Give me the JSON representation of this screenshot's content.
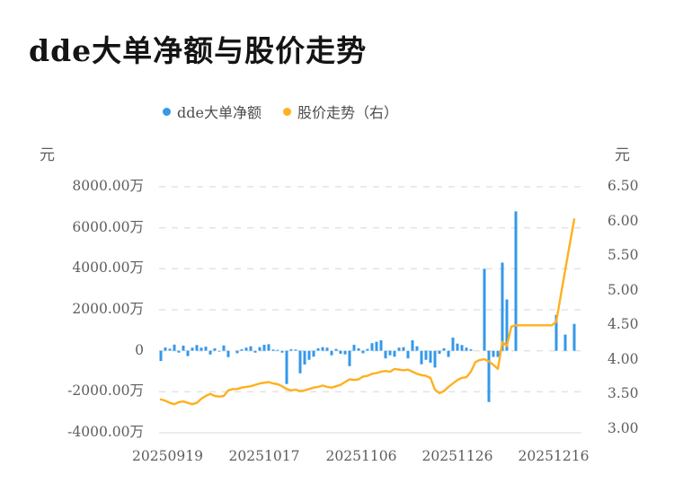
{
  "title": "dde大单净额与股价走势",
  "legend": {
    "items": [
      {
        "label": "dde大单净额",
        "color": "#3498EB"
      },
      {
        "label": "股价走势（右）",
        "color": "#FFB01E"
      }
    ]
  },
  "axes": {
    "left_unit": "元",
    "right_unit": "元",
    "left_tick_labels": [
      "8000.00万",
      "6000.00万",
      "4000.00万",
      "2000.00万",
      "0",
      "-2000.00万",
      "-4000.00万"
    ],
    "right_tick_labels": [
      "6.50",
      "6.00",
      "5.50",
      "5.00",
      "4.50",
      "4.00",
      "3.50",
      "3.00"
    ],
    "x_tick_labels": [
      "20250919",
      "20251017",
      "20251106",
      "20251126",
      "20251216"
    ]
  },
  "colors": {
    "bar": "#3498EB",
    "line": "#FFB01E",
    "grid": "#E4E4E4",
    "grid_bottom": "#ECECEC",
    "text": "#5e5e5e",
    "title_text": "#141414",
    "background": "#ffffff"
  },
  "chart_data": {
    "type": "bar",
    "title": "dde大单净额与股价走势",
    "legend_position": "top-center",
    "grid": "horizontal-dashed",
    "x_axis": {
      "visible_tick_labels": [
        "20250919",
        "20251017",
        "20251106",
        "20251126",
        "20251216"
      ],
      "points_count": 93,
      "note_units": "trading days"
    },
    "left_axis": {
      "unit": "元",
      "label_unit": "万",
      "min": -4000,
      "max": 8000,
      "ticks": [
        8000,
        6000,
        4000,
        2000,
        0,
        -2000,
        -4000
      ]
    },
    "right_axis": {
      "unit": "元",
      "min": 3.0,
      "max": 6.5,
      "ticks": [
        6.5,
        6.0,
        5.5,
        5.0,
        4.5,
        4.0,
        3.5,
        3.0
      ]
    },
    "series": [
      {
        "name": "dde大单净额",
        "type": "bar",
        "axis": "left",
        "unit": "万元",
        "color": "#3498EB",
        "values": [
          -500,
          160,
          100,
          300,
          -90,
          250,
          -260,
          150,
          280,
          150,
          200,
          -180,
          120,
          -40,
          260,
          -310,
          0,
          -120,
          70,
          150,
          220,
          -90,
          175,
          290,
          320,
          60,
          40,
          -90,
          -1620,
          70,
          60,
          -1100,
          -670,
          -440,
          -290,
          120,
          175,
          150,
          -220,
          90,
          -150,
          -175,
          -750,
          290,
          120,
          -120,
          90,
          370,
          440,
          510,
          -370,
          -220,
          -290,
          150,
          175,
          -370,
          510,
          220,
          -660,
          -440,
          -580,
          -820,
          -150,
          120,
          -300,
          640,
          350,
          280,
          150,
          70,
          0,
          0,
          4000,
          -2500,
          -300,
          -300,
          4300,
          2500,
          0,
          6800,
          0,
          0,
          0,
          0,
          0,
          0,
          0,
          0,
          1750,
          0,
          790,
          0,
          1310
        ]
      },
      {
        "name": "股价走势（右）",
        "type": "line",
        "axis": "right",
        "unit": "元",
        "color": "#FFB01E",
        "values": [
          3.43,
          3.41,
          3.38,
          3.36,
          3.39,
          3.4,
          3.38,
          3.36,
          3.38,
          3.44,
          3.48,
          3.51,
          3.48,
          3.47,
          3.48,
          3.56,
          3.58,
          3.58,
          3.6,
          3.61,
          3.62,
          3.64,
          3.66,
          3.67,
          3.68,
          3.66,
          3.65,
          3.62,
          3.58,
          3.56,
          3.57,
          3.55,
          3.56,
          3.58,
          3.6,
          3.61,
          3.63,
          3.61,
          3.6,
          3.62,
          3.64,
          3.68,
          3.72,
          3.71,
          3.72,
          3.76,
          3.77,
          3.8,
          3.81,
          3.83,
          3.84,
          3.83,
          3.87,
          3.86,
          3.85,
          3.86,
          3.83,
          3.8,
          3.78,
          3.77,
          3.74,
          3.57,
          3.52,
          3.55,
          3.61,
          3.66,
          3.71,
          3.74,
          3.75,
          3.83,
          3.97,
          4.0,
          4.01,
          3.98,
          3.93,
          3.87,
          4.26,
          4.2,
          4.48,
          4.5,
          4.5,
          4.5,
          4.5,
          4.5,
          4.5,
          4.5,
          4.5,
          4.5,
          4.55,
          4.93,
          5.3,
          5.67,
          6.03
        ]
      }
    ]
  }
}
